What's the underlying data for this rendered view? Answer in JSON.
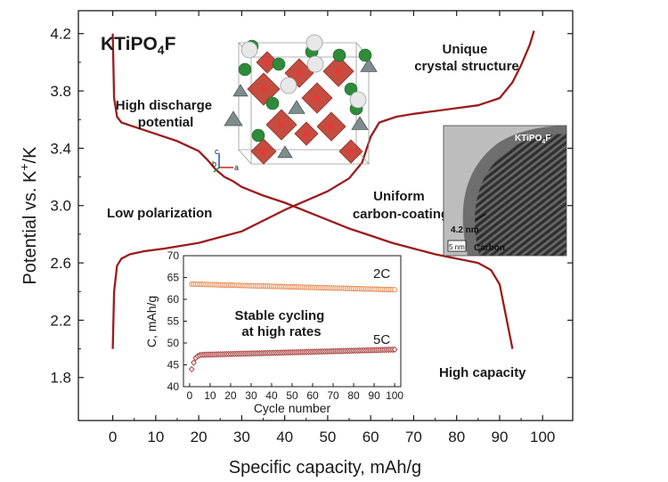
{
  "chart_data": [
    {
      "type": "line",
      "title": "KTiPO4F",
      "title_base": "KTiPO",
      "title_sub": "4",
      "title_end": "F",
      "xlabel": "Specific capacity, mAh/g",
      "ylabel_prefix": "Potential vs. K",
      "ylabel_sup": "+",
      "ylabel_suffix": "/K",
      "xlim": [
        -8,
        107
      ],
      "ylim": [
        1.5,
        4.36
      ],
      "xticks": [
        0,
        10,
        20,
        30,
        40,
        50,
        60,
        70,
        80,
        90,
        100
      ],
      "yticks": [
        1.8,
        2.2,
        2.6,
        3.0,
        3.4,
        3.8,
        4.2
      ],
      "ytick_labels": [
        "1.8",
        "2.2",
        "2.6",
        "3.0",
        "3.4",
        "3.8",
        "4.2"
      ],
      "color": "#9b1c1c",
      "series": [
        {
          "name": "charge",
          "x": [
            0,
            0.3,
            1,
            2,
            4,
            7,
            12,
            20,
            30,
            40,
            50,
            55,
            58,
            60,
            62,
            66,
            70,
            75,
            80,
            85,
            90,
            93,
            95,
            97,
            98
          ],
          "y": [
            2.0,
            2.4,
            2.58,
            2.63,
            2.66,
            2.68,
            2.7,
            2.74,
            2.82,
            2.97,
            3.1,
            3.19,
            3.3,
            3.48,
            3.58,
            3.62,
            3.64,
            3.66,
            3.68,
            3.7,
            3.75,
            3.86,
            3.98,
            4.12,
            4.22
          ]
        },
        {
          "name": "discharge",
          "x": [
            0,
            0.3,
            1,
            2,
            5,
            10,
            15,
            20,
            22,
            24,
            26,
            28,
            30,
            35,
            40,
            45,
            50,
            55,
            60,
            65,
            70,
            75,
            80,
            85,
            88,
            90,
            91,
            92,
            93
          ],
          "y": [
            4.2,
            3.75,
            3.62,
            3.58,
            3.55,
            3.5,
            3.45,
            3.38,
            3.32,
            3.25,
            3.2,
            3.17,
            3.13,
            3.07,
            3.02,
            2.96,
            2.9,
            2.84,
            2.79,
            2.74,
            2.7,
            2.66,
            2.63,
            2.6,
            2.55,
            2.45,
            2.3,
            2.15,
            2.0
          ]
        }
      ],
      "annotations": [
        "High discharge potential",
        "Low polarization",
        "Unique crystal structure",
        "Uniform carbon-coating",
        "High capacity"
      ],
      "annotation_lines": {
        "high_discharge": [
          "High discharge",
          "potential"
        ],
        "low_polarization": [
          "Low polarization"
        ],
        "unique_crystal": [
          "Unique",
          "crystal structure"
        ],
        "uniform_coating": [
          "Uniform",
          "carbon-coating"
        ],
        "high_capacity": [
          "High capacity"
        ]
      }
    },
    {
      "type": "scatter",
      "title": "Stable cycling at high rates",
      "title_lines": [
        "Stable cycling",
        "at high rates"
      ],
      "xlabel": "Cycle number",
      "ylabel": "C, mAh/g",
      "xlim": [
        -3,
        103
      ],
      "ylim": [
        40,
        70
      ],
      "xticks": [
        0,
        10,
        20,
        30,
        40,
        50,
        60,
        70,
        80,
        90,
        100
      ],
      "yticks": [
        40,
        45,
        50,
        55,
        60,
        65,
        70
      ],
      "series": [
        {
          "name": "2C",
          "color": "#e08a55",
          "marker": "circle",
          "first_cycle": 1,
          "last_cycle": 100,
          "start_value": 63.5,
          "end_value": 62.2
        },
        {
          "name": "5C",
          "color": "#a33a3a",
          "marker": "diamond",
          "cycles": [
            1,
            2,
            3,
            4,
            5
          ],
          "values": [
            44.0,
            45.5,
            46.6,
            47.0,
            47.2
          ],
          "first_cycle": 6,
          "last_cycle": 100,
          "start_value": 47.3,
          "end_value": 48.5
        }
      ]
    }
  ],
  "insets": {
    "crystal_axes": {
      "c": "c",
      "b": "b",
      "a": "a"
    },
    "tem": {
      "label_base": "KTiPO",
      "label_sub": "4",
      "label_end": "F",
      "thickness": "4.2 nm",
      "scalebar": "5 nm",
      "material": "Carbon"
    }
  },
  "colors": {
    "curve": "#9b1c1c",
    "octahedron": "#c0392b",
    "tetrahedron": "#7f8c8d",
    "fluoride": "#2e8b3a",
    "potassium": "#e8e8e8"
  }
}
